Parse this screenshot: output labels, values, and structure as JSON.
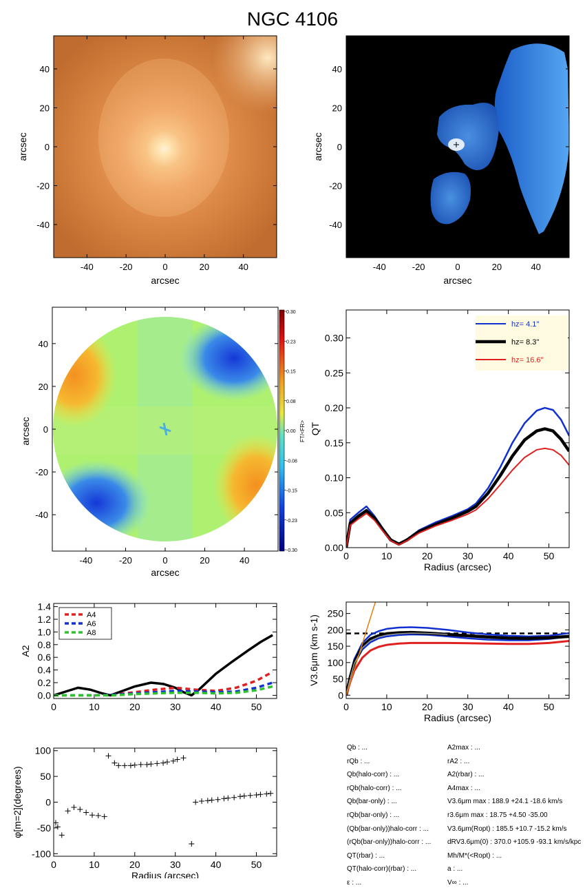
{
  "title": "NGC 4106",
  "colors": {
    "blue": "#1030d0",
    "black": "#000000",
    "red": "#e02020",
    "green": "#30c030",
    "orange": "#e08010",
    "legend_bg": "#fffbe0"
  },
  "chart_data": [
    {
      "id": "image-panel",
      "type": "heatmap",
      "description": "galaxy image",
      "xlabel": "arcsec",
      "ylabel": "arcsec",
      "xlim": [
        -57,
        57
      ],
      "ylim": [
        -57,
        57
      ],
      "xticks": [
        -40,
        -20,
        0,
        20,
        40
      ],
      "yticks": [
        -40,
        -20,
        0,
        20,
        40
      ]
    },
    {
      "id": "bar-panel",
      "type": "heatmap",
      "xlabel": "arcsec",
      "ylabel": "arcsec",
      "xlim": [
        -57,
        57
      ],
      "ylim": [
        -57,
        57
      ],
      "xticks": [
        -40,
        -20,
        0,
        20,
        40
      ],
      "yticks": [
        -40,
        -20,
        0,
        20,
        40
      ]
    },
    {
      "id": "force-map",
      "type": "heatmap",
      "xlabel": "arcsec",
      "ylabel": "arcsec",
      "xlim": [
        -57,
        57
      ],
      "ylim": [
        -57,
        57
      ],
      "xticks": [
        -40,
        -20,
        0,
        20,
        40
      ],
      "yticks": [
        -40,
        -20,
        0,
        20,
        40
      ],
      "colorbar_label": "FT/<FR>",
      "colorbar_ticks": [
        "0.30",
        "0.23",
        "0.15",
        "0.08",
        "0.00",
        "-0.08",
        "-0.15",
        "-0.23",
        "-0.30"
      ]
    },
    {
      "id": "qt-profile",
      "type": "line",
      "xlabel": "Radius (arcsec)",
      "ylabel": "QT",
      "xlim": [
        0,
        55
      ],
      "ylim": [
        0,
        0.34
      ],
      "xticks": [
        0,
        10,
        20,
        30,
        40,
        50
      ],
      "yticks": [
        "0.00",
        "0.05",
        "0.10",
        "0.15",
        "0.20",
        "0.25",
        "0.30"
      ],
      "legend_position": "top-right",
      "series": [
        {
          "name": "hz=  4.1''",
          "label_text": "hz=  4.1''",
          "color": "#1030d0",
          "x": [
            0,
            1,
            3,
            5,
            7,
            9,
            11,
            13,
            15,
            18,
            22,
            26,
            30,
            32,
            35,
            38,
            41,
            44,
            47,
            49,
            51,
            53,
            55
          ],
          "y": [
            0.0,
            0.04,
            0.05,
            0.059,
            0.045,
            0.028,
            0.012,
            0.005,
            0.012,
            0.025,
            0.036,
            0.045,
            0.055,
            0.063,
            0.085,
            0.115,
            0.15,
            0.178,
            0.196,
            0.2,
            0.197,
            0.183,
            0.16
          ]
        },
        {
          "name": "hz=  8.3''",
          "label_text": "hz=  8.3''",
          "color": "#000000",
          "x": [
            0,
            1,
            3,
            5,
            7,
            9,
            11,
            13,
            15,
            18,
            22,
            26,
            30,
            32,
            35,
            38,
            41,
            44,
            47,
            49,
            51,
            53,
            55
          ],
          "y": [
            0.0,
            0.035,
            0.045,
            0.053,
            0.042,
            0.026,
            0.011,
            0.005,
            0.011,
            0.023,
            0.033,
            0.042,
            0.052,
            0.059,
            0.078,
            0.103,
            0.131,
            0.154,
            0.167,
            0.17,
            0.167,
            0.155,
            0.138
          ]
        },
        {
          "name": "hz=  16.6''",
          "label_text": "hz=  16.6''",
          "color": "#e02020",
          "x": [
            0,
            1,
            3,
            5,
            7,
            9,
            11,
            13,
            15,
            18,
            22,
            26,
            30,
            32,
            35,
            38,
            41,
            44,
            47,
            49,
            51,
            53,
            55
          ],
          "y": [
            0.0,
            0.032,
            0.041,
            0.049,
            0.039,
            0.024,
            0.01,
            0.004,
            0.01,
            0.021,
            0.031,
            0.039,
            0.048,
            0.054,
            0.07,
            0.09,
            0.111,
            0.129,
            0.14,
            0.142,
            0.14,
            0.132,
            0.118
          ]
        }
      ]
    },
    {
      "id": "a2-profile",
      "type": "line",
      "xlabel": "",
      "ylabel": "A2",
      "xlim": [
        0,
        55
      ],
      "ylim": [
        -0.05,
        1.45
      ],
      "xticks": [
        0,
        10,
        20,
        30,
        40,
        50
      ],
      "yticks": [
        "0.0",
        "0.2",
        "0.4",
        "0.6",
        "0.8",
        "1.0",
        "1.2",
        "1.4"
      ],
      "legend_position": "top-left",
      "series": [
        {
          "name": "A2",
          "color": "#000000",
          "dashed": false,
          "x": [
            0,
            3,
            6,
            9,
            12,
            14,
            17,
            20,
            24,
            27,
            30,
            32,
            34,
            36,
            40,
            44,
            48,
            51,
            54
          ],
          "y": [
            0.0,
            0.06,
            0.12,
            0.09,
            0.03,
            0.0,
            0.07,
            0.14,
            0.2,
            0.18,
            0.12,
            0.05,
            0.0,
            0.1,
            0.34,
            0.53,
            0.71,
            0.84,
            0.95
          ]
        },
        {
          "name": "A4",
          "color": "#e02020",
          "dashed": true,
          "x": [
            0,
            5,
            10,
            15,
            20,
            25,
            30,
            35,
            40,
            45,
            50,
            54
          ],
          "y": [
            0.0,
            0.0,
            0.0,
            0.01,
            0.05,
            0.09,
            0.12,
            0.09,
            0.07,
            0.12,
            0.23,
            0.37
          ]
        },
        {
          "name": "A6",
          "color": "#1030d0",
          "dashed": true,
          "x": [
            0,
            5,
            10,
            15,
            20,
            25,
            30,
            35,
            40,
            45,
            50,
            54
          ],
          "y": [
            0.0,
            0.0,
            0.0,
            0.01,
            0.03,
            0.05,
            0.07,
            0.06,
            0.05,
            0.06,
            0.12,
            0.2
          ]
        },
        {
          "name": "A8",
          "color": "#30c030",
          "dashed": true,
          "x": [
            0,
            5,
            10,
            15,
            20,
            25,
            30,
            35,
            40,
            45,
            50,
            54
          ],
          "y": [
            0.0,
            0.0,
            0.0,
            0.0,
            0.02,
            0.03,
            0.04,
            0.04,
            0.03,
            0.04,
            0.08,
            0.14
          ]
        }
      ]
    },
    {
      "id": "rotation-curve",
      "type": "line",
      "xlabel": "Radius (arcsec)",
      "ylabel": "V3.6μm (km s-1)",
      "xlim": [
        0,
        55
      ],
      "ylim": [
        -10,
        285
      ],
      "xticks": [
        0,
        10,
        20,
        30,
        40,
        50
      ],
      "yticks": [
        0,
        50,
        100,
        150,
        200,
        250
      ],
      "vmax_line": 189,
      "series": [
        {
          "name": "total-upper",
          "color": "#1030d0",
          "x": [
            0,
            1,
            2,
            4,
            6,
            8,
            10,
            13,
            16,
            20,
            25,
            30,
            35,
            40,
            45,
            50,
            55
          ],
          "y": [
            0,
            60,
            110,
            160,
            185,
            196,
            203,
            207,
            208,
            206,
            200,
            192,
            186,
            182,
            180,
            182,
            190
          ]
        },
        {
          "name": "total-lower",
          "color": "#1030d0",
          "x": [
            0,
            1,
            2,
            4,
            6,
            8,
            10,
            13,
            16,
            20,
            25,
            30,
            35,
            40,
            45,
            50,
            55
          ],
          "y": [
            0,
            50,
            95,
            140,
            162,
            174,
            180,
            184,
            186,
            185,
            180,
            174,
            170,
            168,
            168,
            172,
            180
          ]
        },
        {
          "name": "black",
          "color": "#000000",
          "x": [
            0,
            1,
            2,
            4,
            6,
            8,
            10,
            13,
            16,
            20,
            25,
            30,
            35,
            40,
            45,
            50,
            55
          ],
          "y": [
            0,
            55,
            100,
            150,
            172,
            182,
            188,
            191,
            192,
            190,
            186,
            182,
            178,
            175,
            174,
            176,
            180
          ]
        },
        {
          "name": "red",
          "color": "#e02020",
          "x": [
            0,
            1,
            2,
            4,
            6,
            8,
            10,
            13,
            16,
            20,
            25,
            30,
            35,
            40,
            45,
            50,
            55
          ],
          "y": [
            0,
            40,
            75,
            115,
            137,
            148,
            154,
            158,
            160,
            160,
            160,
            159,
            158,
            157,
            157,
            160,
            166
          ]
        },
        {
          "name": "grey",
          "color": "#9a9a9a",
          "x": [
            0,
            1,
            2,
            4,
            6,
            8,
            10,
            13,
            16,
            20,
            25
          ],
          "y": [
            0,
            52,
            97,
            145,
            167,
            178,
            184,
            188,
            190,
            189,
            186
          ]
        },
        {
          "name": "orange",
          "color": "#e08010",
          "x": [
            0,
            7.2
          ],
          "y": [
            0,
            285
          ]
        }
      ]
    },
    {
      "id": "phase-profile",
      "type": "scatter",
      "xlabel": "Radius (arcsec)",
      "ylabel": "φ[m=2](degrees)",
      "xlim": [
        0,
        55
      ],
      "ylim": [
        -105,
        105
      ],
      "xticks": [
        0,
        10,
        20,
        30,
        40,
        50
      ],
      "yticks": [
        -100,
        -50,
        0,
        50,
        100
      ],
      "marker": "+",
      "x": [
        0.5,
        1,
        2,
        3.5,
        5,
        6.5,
        8,
        9.5,
        11,
        12.5,
        13.5,
        15,
        16,
        17.5,
        19,
        20,
        21.5,
        23,
        24,
        25.5,
        27,
        28,
        29.5,
        30.5,
        32,
        34,
        35,
        36.5,
        38,
        39,
        40.5,
        42,
        43,
        44.5,
        46,
        47,
        48.5,
        50,
        51,
        52.5,
        53.5
      ],
      "y": [
        -40,
        -48,
        -64,
        -17,
        -10,
        -14,
        -20,
        -25,
        -26,
        -28,
        90,
        76,
        71,
        71,
        71,
        72,
        73,
        73,
        74,
        75,
        76,
        78,
        80,
        83,
        86,
        -81,
        0,
        2,
        3,
        4,
        5,
        7,
        8,
        9,
        11,
        12,
        13,
        14,
        15,
        16,
        17
      ]
    }
  ],
  "params_left": [
    "Qb : ...",
    "rQb : ...",
    "Qb(halo-corr) : ...",
    "rQb(halo-corr) : ...",
    "Qb(bar-only) : ...",
    "rQb(bar-only) : ...",
    "(Qb(bar-only))halo-corr : ...",
    "(rQb(bar-only))halo-corr : ...",
    "QT(rbar) : ...",
    "QT(halo-corr)(rbar) : ...",
    "ε : ..."
  ],
  "params_right": [
    "A2max : ...",
    "rA2 : ...",
    "A2(rbar) : ...",
    "A4max : ...",
    "V3.6μm max :  188.9 +24.1 -18.6 km/s",
    "r3.6μm max :  18.75 +4.50 -35.00",
    "V3.6μm(Ropt) :  185.5 +10.7 -15.2 km/s",
    "dRV3.6μm(0) :  370.0 +105.9 -93.1 km/s/kpc",
    "Mh/M*(<Ropt) : ...",
    "a : ...",
    "V∞ : ..."
  ]
}
